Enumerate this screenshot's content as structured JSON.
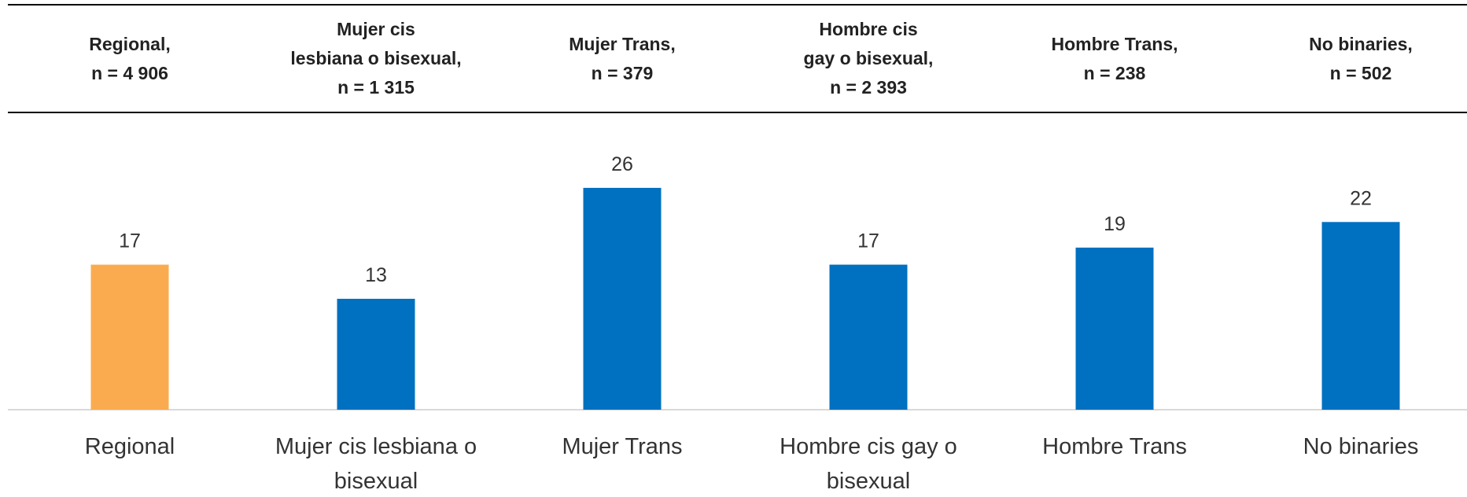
{
  "chart_data": {
    "type": "bar",
    "column_headers": [
      [
        "Regional,",
        "n = 4 906"
      ],
      [
        "Mujer cis",
        "lesbiana o bisexual,",
        "n = 1 315"
      ],
      [
        "Mujer Trans,",
        "n = 379"
      ],
      [
        "Hombre cis",
        "gay o bisexual,",
        "n = 2 393"
      ],
      [
        "Hombre Trans,",
        "n = 238"
      ],
      [
        "No binaries,",
        "n = 502"
      ]
    ],
    "categories": [
      "Regional",
      "Mujer cis lesbiana o bisexual",
      "Mujer Trans",
      "Hombre cis gay o bisexual",
      "Hombre Trans",
      "No binaries"
    ],
    "values": [
      17,
      13,
      26,
      17,
      19,
      22
    ],
    "colors": [
      "#fbab4f",
      "#0070c0",
      "#0070c0",
      "#0070c0",
      "#0070c0",
      "#0070c0"
    ],
    "ylim": [
      0,
      30
    ]
  }
}
